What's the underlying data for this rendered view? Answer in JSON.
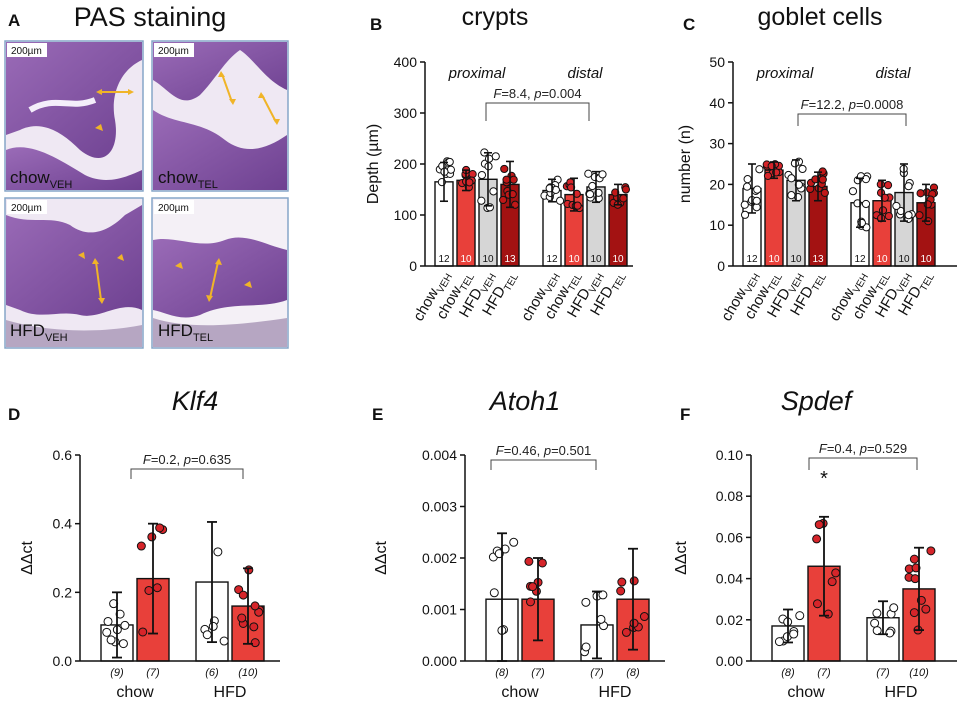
{
  "colors": {
    "chow_veh": "#ffffff",
    "chow_tel": "#e8403a",
    "hfd_veh": "#d6d6d6",
    "hfd_tel": "#a31212",
    "dot_red": "#d6252a",
    "axis": "#111111",
    "photo_border": "#86a6c8",
    "tissue": "#8a5aa6",
    "arrow": "#f0b428"
  },
  "panel_a": {
    "letter": "A",
    "title": "PAS staining",
    "photos": [
      {
        "scale": "200µm",
        "label_main": "chow",
        "label_sub": "VEH"
      },
      {
        "scale": "200µm",
        "label_main": "chow",
        "label_sub": "TEL"
      },
      {
        "scale": "200µm",
        "label_main": "HFD",
        "label_sub": "VEH"
      },
      {
        "scale": "200µm",
        "label_main": "HFD",
        "label_sub": "TEL"
      }
    ]
  },
  "chart_data": [
    {
      "panel": "B",
      "type": "bar",
      "title": "crypts",
      "ylabel": "Depth (µm)",
      "ylim": [
        0,
        400
      ],
      "yticks": [
        0,
        100,
        200,
        300,
        400
      ],
      "group_labels": [
        "proximal",
        "distal"
      ],
      "bar_labels": [
        {
          "main": "chow",
          "sub": "VEH"
        },
        {
          "main": "chow",
          "sub": "TEL"
        },
        {
          "main": "HFD",
          "sub": "VEH"
        },
        {
          "main": "HFD",
          "sub": "TEL"
        }
      ],
      "groups": [
        {
          "values": [
            165,
            168,
            170,
            160
          ],
          "err": [
            38,
            20,
            52,
            45
          ],
          "n": [
            "12",
            "10",
            "10",
            "13"
          ]
        },
        {
          "values": [
            148,
            140,
            155,
            140
          ],
          "err": [
            22,
            32,
            30,
            20
          ],
          "n": [
            "12",
            "10",
            "10",
            "10"
          ]
        }
      ],
      "annotation": {
        "stat_f": "F",
        "stat_f_value": "=8.4, ",
        "stat_p": "p",
        "stat_p_value": "=0.004"
      }
    },
    {
      "panel": "C",
      "type": "bar",
      "title": "goblet cells",
      "ylabel": "number (n)",
      "ylim": [
        0,
        50
      ],
      "yticks": [
        0,
        10,
        20,
        30,
        40,
        50
      ],
      "group_labels": [
        "proximal",
        "distal"
      ],
      "bar_labels": [
        {
          "main": "chow",
          "sub": "VEH"
        },
        {
          "main": "chow",
          "sub": "TEL"
        },
        {
          "main": "HFD",
          "sub": "VEH"
        },
        {
          "main": "HFD",
          "sub": "TEL"
        }
      ],
      "groups": [
        {
          "values": [
            19,
            23.5,
            21,
            19.5
          ],
          "err": [
            6,
            2,
            5,
            3.5
          ],
          "n": [
            "12",
            "10",
            "10",
            "13"
          ]
        },
        {
          "values": [
            15.5,
            16,
            18,
            15.5
          ],
          "err": [
            6,
            5,
            7,
            4.5
          ],
          "n": [
            "12",
            "10",
            "10",
            "10"
          ]
        }
      ],
      "annotation": {
        "stat_f": "F",
        "stat_f_value": "=12.2, ",
        "stat_p": "p",
        "stat_p_value": "=0.0008"
      }
    },
    {
      "panel": "D",
      "type": "bar",
      "title": "Klf4",
      "ylabel": "ΔΔct",
      "ylim": [
        0,
        0.6
      ],
      "yticks": [
        "0.0",
        "0.2",
        "0.4",
        "0.6"
      ],
      "categories": [
        "chow",
        "HFD"
      ],
      "series": [
        {
          "name": "VEH",
          "values": [
            0.105,
            0.23
          ],
          "err": [
            0.095,
            0.175
          ],
          "n": [
            "(9)",
            "(6)"
          ]
        },
        {
          "name": "TEL",
          "values": [
            0.24,
            0.16
          ],
          "err": [
            0.16,
            0.11
          ],
          "n": [
            "(7)",
            "(10)"
          ]
        }
      ],
      "annotation": {
        "stat_f": "F",
        "stat_f_value": "=0.2, ",
        "stat_p": "p",
        "stat_p_value": "=0.635"
      }
    },
    {
      "panel": "E",
      "type": "bar",
      "title": "Atoh1",
      "ylabel": "ΔΔct",
      "ylim": [
        0,
        0.004
      ],
      "yticks": [
        "0.000",
        "0.001",
        "0.002",
        "0.003",
        "0.004"
      ],
      "categories": [
        "chow",
        "HFD"
      ],
      "series": [
        {
          "name": "VEH",
          "values": [
            0.0012,
            0.0007
          ],
          "err": [
            0.00128,
            0.00065
          ],
          "n": [
            "(8)",
            "(7)"
          ]
        },
        {
          "name": "TEL",
          "values": [
            0.0012,
            0.0012
          ],
          "err": [
            0.0008,
            0.00098
          ],
          "n": [
            "(7)",
            "(8)"
          ]
        }
      ],
      "annotation": {
        "stat_f": "F",
        "stat_f_value": "=0.46, ",
        "stat_p": "p",
        "stat_p_value": "=0.501"
      }
    },
    {
      "panel": "F",
      "type": "bar",
      "title": "Spdef",
      "ylabel": "ΔΔct",
      "ylim": [
        0,
        0.1
      ],
      "yticks": [
        "0.00",
        "0.02",
        "0.04",
        "0.06",
        "0.08",
        "0.10"
      ],
      "categories": [
        "chow",
        "HFD"
      ],
      "series": [
        {
          "name": "VEH",
          "values": [
            0.017,
            0.021
          ],
          "err": [
            0.008,
            0.008
          ],
          "n": [
            "(8)",
            "(7)"
          ]
        },
        {
          "name": "TEL",
          "values": [
            0.046,
            0.035
          ],
          "err": [
            0.024,
            0.02
          ],
          "n": [
            "(7)",
            "(10)"
          ]
        }
      ],
      "annotation": {
        "stat_f": "F",
        "stat_f_value": "=0.4, ",
        "stat_p": "p",
        "stat_p_value": "=0.529"
      },
      "star": "*"
    }
  ]
}
